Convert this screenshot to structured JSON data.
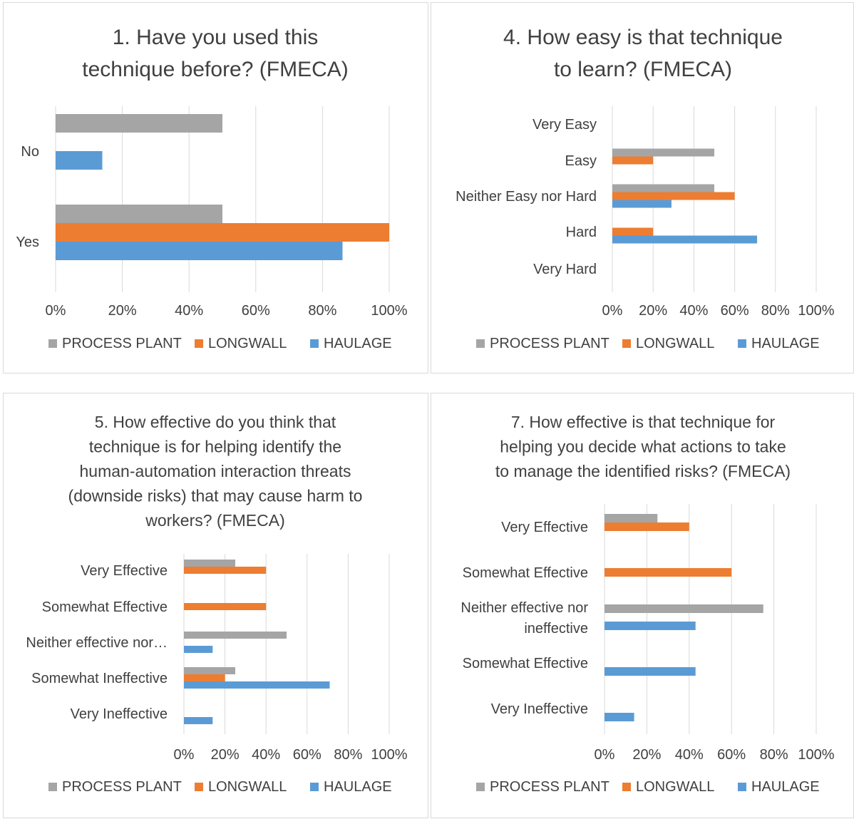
{
  "series_meta": [
    {
      "name": "PROCESS PLANT",
      "color": "#a5a5a5"
    },
    {
      "name": "LONGWALL",
      "color": "#ed7d31"
    },
    {
      "name": "HAULAGE",
      "color": "#5b9bd5"
    }
  ],
  "chart_data": [
    {
      "type": "bar",
      "orientation": "horizontal",
      "title": [
        "1. Have you used this",
        "technique before? (FMECA)"
      ],
      "categories": [
        "No",
        "Yes"
      ],
      "series": [
        {
          "name": "PROCESS PLANT",
          "values": [
            50,
            50
          ]
        },
        {
          "name": "LONGWALL",
          "values": [
            0,
            100
          ]
        },
        {
          "name": "HAULAGE",
          "values": [
            14,
            86
          ]
        }
      ],
      "xlim": [
        0,
        100
      ],
      "xticks": [
        "0%",
        "20%",
        "40%",
        "60%",
        "80%",
        "100%"
      ],
      "legend": "bottom",
      "grid": true
    },
    {
      "type": "bar",
      "orientation": "horizontal",
      "title": [
        "4. How easy is that technique",
        "to learn? (FMECA)"
      ],
      "categories": [
        "Very Easy",
        "Easy",
        "Neither Easy nor Hard",
        "Hard",
        "Very Hard"
      ],
      "series": [
        {
          "name": "PROCESS PLANT",
          "values": [
            0,
            50,
            50,
            0,
            0
          ]
        },
        {
          "name": "LONGWALL",
          "values": [
            0,
            20,
            60,
            20,
            0
          ]
        },
        {
          "name": "HAULAGE",
          "values": [
            0,
            0,
            29,
            71,
            0
          ]
        }
      ],
      "xlim": [
        0,
        100
      ],
      "xticks": [
        "0%",
        "20%",
        "40%",
        "60%",
        "80%",
        "100%"
      ],
      "legend": "bottom",
      "grid": true
    },
    {
      "type": "bar",
      "orientation": "horizontal",
      "title": [
        "5. How effective do you think that",
        "technique is for helping identify the",
        "human-automation interaction threats",
        "(downside risks) that may cause harm to",
        "workers? (FMECA)"
      ],
      "categories": [
        "Very Effective",
        "Somewhat Effective",
        "Neither effective nor…",
        "Somewhat Ineffective",
        "Very Ineffective"
      ],
      "series": [
        {
          "name": "PROCESS PLANT",
          "values": [
            25,
            0,
            50,
            25,
            0
          ]
        },
        {
          "name": "LONGWALL",
          "values": [
            40,
            40,
            0,
            20,
            0
          ]
        },
        {
          "name": "HAULAGE",
          "values": [
            0,
            0,
            14,
            71,
            14
          ]
        }
      ],
      "xlim": [
        0,
        100
      ],
      "xticks": [
        "0%",
        "20%",
        "40%",
        "60%",
        "80%",
        "100%"
      ],
      "legend": "bottom",
      "grid": true
    },
    {
      "type": "bar",
      "orientation": "horizontal",
      "title": [
        "7. How effective is that technique for",
        "helping you decide what actions to take",
        "to manage the identified risks? (FMECA)"
      ],
      "categories": [
        "Very Effective",
        "Somewhat Effective",
        "Neither effective nor\nineffective",
        "Somewhat Effective",
        "Very Ineffective"
      ],
      "series": [
        {
          "name": "PROCESS PLANT",
          "values": [
            25,
            0,
            75,
            0,
            0
          ]
        },
        {
          "name": "LONGWALL",
          "values": [
            40,
            60,
            0,
            0,
            0
          ]
        },
        {
          "name": "HAULAGE",
          "values": [
            0,
            0,
            43,
            43,
            14
          ]
        }
      ],
      "xlim": [
        0,
        100
      ],
      "xticks": [
        "0%",
        "20%",
        "40%",
        "60%",
        "80%",
        "100%"
      ],
      "legend": "bottom",
      "grid": true
    }
  ]
}
